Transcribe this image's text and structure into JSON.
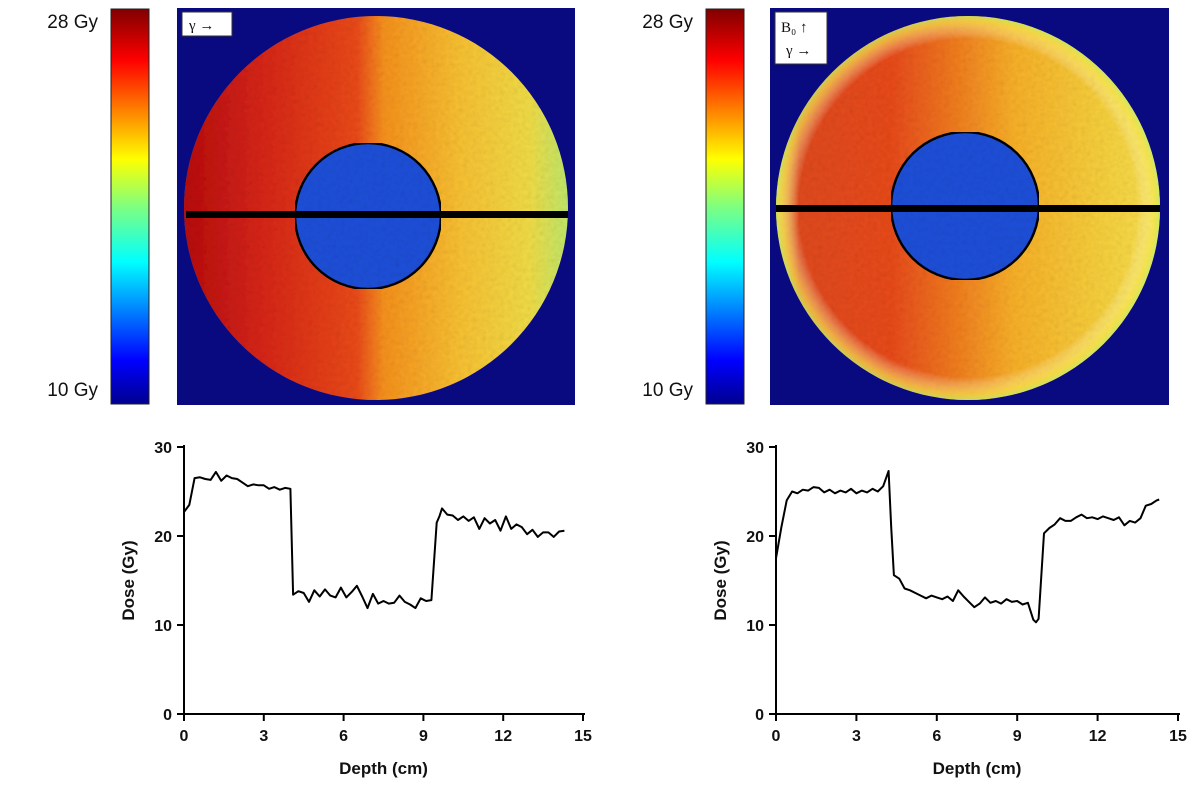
{
  "panels": [
    {
      "colorbar": {
        "max_label": "28 Gy",
        "min_label": "10 Gy"
      },
      "legend": {
        "line1": "γ →",
        "line2": ""
      }
    },
    {
      "colorbar": {
        "max_label": "28 Gy",
        "min_label": "10 Gy"
      },
      "legend": {
        "line1": "B₀ ↑",
        "line2": "γ →"
      }
    }
  ],
  "colors": {
    "background": "#0a0a80",
    "insert": "#1f4fd8",
    "profile_line": "#000000"
  },
  "chart_data": [
    {
      "type": "line",
      "title": "",
      "xlabel": "Depth (cm)",
      "ylabel": "Dose (Gy)",
      "xlim": [
        0,
        15
      ],
      "ylim": [
        0,
        30
      ],
      "xticks": [
        0,
        3,
        6,
        9,
        12,
        15
      ],
      "yticks": [
        0,
        10,
        20,
        30
      ],
      "grid": false,
      "series": [
        {
          "name": "",
          "x": [
            0,
            0.2,
            0.4,
            0.6,
            0.8,
            1.0,
            1.2,
            1.4,
            1.6,
            1.8,
            2.0,
            2.2,
            2.4,
            2.6,
            2.8,
            3.0,
            3.2,
            3.4,
            3.6,
            3.8,
            4.0,
            4.1,
            4.3,
            4.5,
            4.7,
            4.9,
            5.1,
            5.3,
            5.5,
            5.7,
            5.9,
            6.1,
            6.3,
            6.5,
            6.7,
            6.9,
            7.1,
            7.3,
            7.5,
            7.7,
            7.9,
            8.1,
            8.3,
            8.5,
            8.7,
            8.9,
            9.1,
            9.3,
            9.5,
            9.6,
            9.7,
            9.9,
            10.1,
            10.3,
            10.5,
            10.7,
            10.9,
            11.1,
            11.3,
            11.5,
            11.7,
            11.9,
            12.1,
            12.3,
            12.5,
            12.7,
            12.9,
            13.1,
            13.3,
            13.5,
            13.7,
            13.9,
            14.1,
            14.3
          ],
          "y": [
            22.7,
            23.5,
            26.5,
            26.6,
            26.4,
            26.3,
            27.2,
            26.2,
            26.8,
            26.5,
            26.4,
            26.0,
            25.6,
            25.8,
            25.7,
            25.7,
            25.3,
            25.5,
            25.2,
            25.4,
            25.3,
            13.4,
            13.8,
            13.6,
            12.6,
            13.9,
            13.2,
            14.0,
            13.3,
            13.1,
            14.2,
            13.1,
            13.7,
            14.4,
            13.2,
            11.9,
            13.5,
            12.4,
            12.7,
            12.4,
            12.5,
            13.3,
            12.6,
            12.3,
            11.9,
            13.0,
            12.7,
            12.8,
            21.5,
            22.2,
            23.1,
            22.4,
            22.3,
            21.8,
            22.2,
            21.7,
            22.1,
            20.8,
            22.0,
            21.4,
            21.8,
            20.6,
            22.2,
            20.8,
            21.3,
            21.0,
            20.2,
            20.7,
            19.9,
            20.4,
            20.4,
            19.9,
            20.5,
            20.6
          ]
        }
      ]
    },
    {
      "type": "line",
      "title": "",
      "xlabel": "Depth (cm)",
      "ylabel": "Dose (Gy)",
      "xlim": [
        0,
        15
      ],
      "ylim": [
        0,
        30
      ],
      "xticks": [
        0,
        3,
        6,
        9,
        12,
        15
      ],
      "yticks": [
        0,
        10,
        20,
        30
      ],
      "grid": false,
      "series": [
        {
          "name": "",
          "x": [
            0,
            0.2,
            0.4,
            0.6,
            0.8,
            1.0,
            1.2,
            1.4,
            1.6,
            1.8,
            2.0,
            2.2,
            2.4,
            2.6,
            2.8,
            3.0,
            3.2,
            3.4,
            3.6,
            3.8,
            4.0,
            4.2,
            4.3,
            4.4,
            4.6,
            4.8,
            5.0,
            5.2,
            5.4,
            5.6,
            5.8,
            6.0,
            6.2,
            6.4,
            6.6,
            6.8,
            7.0,
            7.2,
            7.4,
            7.6,
            7.8,
            8.0,
            8.2,
            8.4,
            8.6,
            8.8,
            9.0,
            9.2,
            9.4,
            9.6,
            9.7,
            9.8,
            10.0,
            10.2,
            10.4,
            10.6,
            10.8,
            11.0,
            11.2,
            11.4,
            11.6,
            11.8,
            12.0,
            12.2,
            12.4,
            12.6,
            12.8,
            13.0,
            13.2,
            13.4,
            13.6,
            13.8,
            14.0,
            14.2,
            14.3
          ],
          "y": [
            17.5,
            21.0,
            24.0,
            25.0,
            24.8,
            25.2,
            25.1,
            25.5,
            25.4,
            24.9,
            25.2,
            24.8,
            25.1,
            24.9,
            25.3,
            24.8,
            25.1,
            24.9,
            25.3,
            25.0,
            25.6,
            27.3,
            21.0,
            15.6,
            15.2,
            14.1,
            13.9,
            13.6,
            13.3,
            13.0,
            13.3,
            13.1,
            12.9,
            13.2,
            12.7,
            13.9,
            13.2,
            12.6,
            12.0,
            12.4,
            13.1,
            12.5,
            12.7,
            12.4,
            12.9,
            12.6,
            12.7,
            12.3,
            12.5,
            10.6,
            10.3,
            10.7,
            20.3,
            20.9,
            21.3,
            22.0,
            21.7,
            21.7,
            22.1,
            22.4,
            22.0,
            22.1,
            21.9,
            22.2,
            22.0,
            21.8,
            22.1,
            21.2,
            21.7,
            21.5,
            22.0,
            23.4,
            23.6,
            24.0,
            24.1
          ]
        }
      ]
    }
  ]
}
